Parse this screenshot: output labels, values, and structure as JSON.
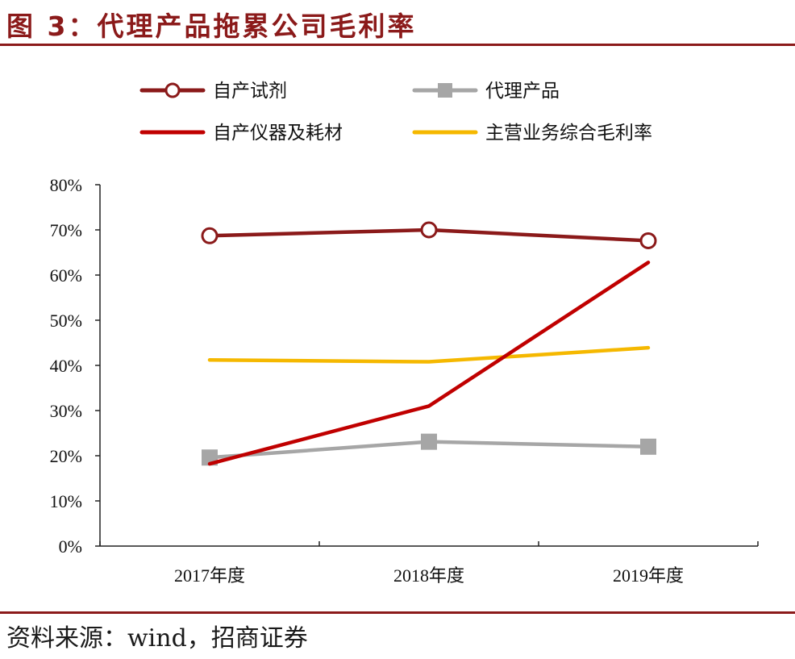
{
  "header": {
    "title": "图 3：代理产品拖累公司毛利率"
  },
  "footer": {
    "source": "资料来源：wind，招商证券"
  },
  "chart_data": {
    "type": "line",
    "title": "",
    "xlabel": "",
    "ylabel": "",
    "categories": [
      "2017年度",
      "2018年度",
      "2019年度"
    ],
    "y_ticks": [
      "0%",
      "10%",
      "20%",
      "30%",
      "40%",
      "50%",
      "60%",
      "70%",
      "80%"
    ],
    "ylim": [
      0,
      80
    ],
    "grid": false,
    "legend_position": "top",
    "series": [
      {
        "name": "自产试剂",
        "values": [
          68.7,
          70.0,
          67.6
        ],
        "color": "#8B1A1A",
        "marker": "circle-open"
      },
      {
        "name": "代理产品",
        "values": [
          19.6,
          23.1,
          22.0
        ],
        "color": "#A6A6A6",
        "marker": "square"
      },
      {
        "name": "自产仪器及耗材",
        "values": [
          18.2,
          31.0,
          62.8
        ],
        "color": "#C00000",
        "marker": "none"
      },
      {
        "name": "主营业务综合毛利率",
        "values": [
          41.2,
          40.8,
          43.9
        ],
        "color": "#F5B800",
        "marker": "none"
      }
    ]
  }
}
